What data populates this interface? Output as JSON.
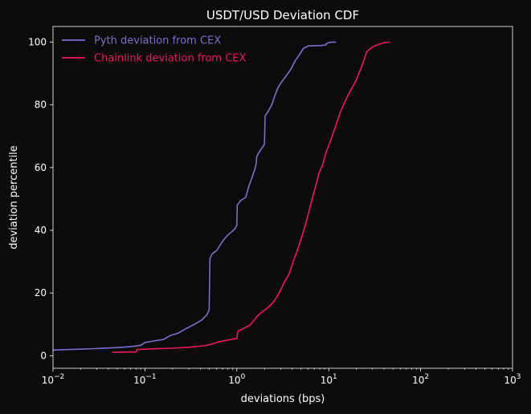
{
  "chart_data": {
    "type": "line",
    "title": "USDT/USD Deviation CDF",
    "xlabel": "deviations (bps)",
    "ylabel": "deviation percentile",
    "xscale": "log",
    "xlim": [
      0.01,
      1000
    ],
    "ylim": [
      -4,
      105
    ],
    "x_ticks": [
      {
        "value": 0.01,
        "base": "10",
        "exp": "−2"
      },
      {
        "value": 0.1,
        "base": "10",
        "exp": "−1"
      },
      {
        "value": 1,
        "base": "10",
        "exp": "0"
      },
      {
        "value": 10,
        "base": "10",
        "exp": "1"
      },
      {
        "value": 100,
        "base": "10",
        "exp": "2"
      },
      {
        "value": 1000,
        "base": "10",
        "exp": "3"
      }
    ],
    "y_ticks": [
      "0",
      "20",
      "40",
      "60",
      "80",
      "100"
    ],
    "legend_position": "top-left",
    "grid": false,
    "background": "#0b0b0c",
    "series": [
      {
        "name": "Pyth deviation from CEX",
        "color": "#7b6fcc",
        "points": [
          [
            0.01,
            1.8
          ],
          [
            0.015,
            2.0
          ],
          [
            0.02,
            2.1
          ],
          [
            0.03,
            2.3
          ],
          [
            0.05,
            2.6
          ],
          [
            0.07,
            2.9
          ],
          [
            0.09,
            3.3
          ],
          [
            0.1,
            4.2
          ],
          [
            0.13,
            4.8
          ],
          [
            0.16,
            5.2
          ],
          [
            0.19,
            6.5
          ],
          [
            0.23,
            7.2
          ],
          [
            0.27,
            8.4
          ],
          [
            0.32,
            9.5
          ],
          [
            0.37,
            10.5
          ],
          [
            0.42,
            11.5
          ],
          [
            0.47,
            13.0
          ],
          [
            0.5,
            14.5
          ],
          [
            0.51,
            31.0
          ],
          [
            0.54,
            32.5
          ],
          [
            0.6,
            33.5
          ],
          [
            0.65,
            35.0
          ],
          [
            0.72,
            37.0
          ],
          [
            0.8,
            38.5
          ],
          [
            0.88,
            39.5
          ],
          [
            0.95,
            40.5
          ],
          [
            1.0,
            41.5
          ],
          [
            1.01,
            48.0
          ],
          [
            1.1,
            49.5
          ],
          [
            1.25,
            50.5
          ],
          [
            1.35,
            54.0
          ],
          [
            1.45,
            56.5
          ],
          [
            1.55,
            59.0
          ],
          [
            1.62,
            61.0
          ],
          [
            1.65,
            63.5
          ],
          [
            1.75,
            65.0
          ],
          [
            1.9,
            66.5
          ],
          [
            2.0,
            67.5
          ],
          [
            2.03,
            76.5
          ],
          [
            2.2,
            78.0
          ],
          [
            2.4,
            80.0
          ],
          [
            2.6,
            83.0
          ],
          [
            2.8,
            85.5
          ],
          [
            3.1,
            87.5
          ],
          [
            3.5,
            89.5
          ],
          [
            3.9,
            91.5
          ],
          [
            4.3,
            94.0
          ],
          [
            4.8,
            96.0
          ],
          [
            5.3,
            98.0
          ],
          [
            6.0,
            98.8
          ],
          [
            8.0,
            98.9
          ],
          [
            9.3,
            99.1
          ],
          [
            9.5,
            99.6
          ],
          [
            10.5,
            100.0
          ],
          [
            12.0,
            100.0
          ]
        ]
      },
      {
        "name": "Chainlink deviation from CEX",
        "color": "#f0195a",
        "points": [
          [
            0.044,
            1.1
          ],
          [
            0.08,
            1.2
          ],
          [
            0.082,
            2.0
          ],
          [
            0.12,
            2.2
          ],
          [
            0.2,
            2.4
          ],
          [
            0.3,
            2.7
          ],
          [
            0.45,
            3.2
          ],
          [
            0.55,
            3.8
          ],
          [
            0.65,
            4.5
          ],
          [
            0.8,
            5.0
          ],
          [
            1.0,
            5.5
          ],
          [
            1.03,
            7.8
          ],
          [
            1.2,
            8.8
          ],
          [
            1.4,
            9.8
          ],
          [
            1.6,
            12.0
          ],
          [
            1.8,
            13.5
          ],
          [
            2.1,
            15.0
          ],
          [
            2.4,
            16.5
          ],
          [
            2.7,
            18.5
          ],
          [
            3.0,
            21.0
          ],
          [
            3.3,
            23.5
          ],
          [
            3.7,
            26.0
          ],
          [
            4.1,
            30.0
          ],
          [
            4.6,
            34.0
          ],
          [
            5.1,
            38.0
          ],
          [
            5.6,
            42.0
          ],
          [
            6.1,
            46.0
          ],
          [
            6.6,
            50.0
          ],
          [
            7.2,
            54.0
          ],
          [
            7.8,
            58.0
          ],
          [
            8.6,
            61.0
          ],
          [
            9.4,
            65.0
          ],
          [
            10.3,
            68.0
          ],
          [
            11.2,
            71.0
          ],
          [
            12.3,
            74.5
          ],
          [
            13.5,
            78.0
          ],
          [
            15.0,
            81.0
          ],
          [
            16.5,
            83.5
          ],
          [
            18.0,
            85.5
          ],
          [
            20.0,
            88.0
          ],
          [
            22.0,
            91.0
          ],
          [
            24.0,
            94.0
          ],
          [
            26.0,
            97.0
          ],
          [
            30.0,
            98.5
          ],
          [
            35.0,
            99.3
          ],
          [
            40.0,
            99.8
          ],
          [
            46.0,
            100.0
          ]
        ]
      }
    ]
  }
}
